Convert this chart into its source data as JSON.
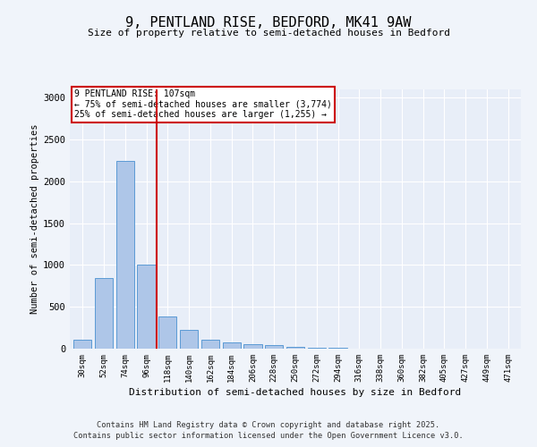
{
  "title_line1": "9, PENTLAND RISE, BEDFORD, MK41 9AW",
  "title_line2": "Size of property relative to semi-detached houses in Bedford",
  "xlabel": "Distribution of semi-detached houses by size in Bedford",
  "ylabel": "Number of semi-detached properties",
  "categories": [
    "30sqm",
    "52sqm",
    "74sqm",
    "96sqm",
    "118sqm",
    "140sqm",
    "162sqm",
    "184sqm",
    "206sqm",
    "228sqm",
    "250sqm",
    "272sqm",
    "294sqm",
    "316sqm",
    "338sqm",
    "360sqm",
    "382sqm",
    "405sqm",
    "427sqm",
    "449sqm",
    "471sqm"
  ],
  "values": [
    105,
    840,
    2250,
    1005,
    390,
    220,
    110,
    80,
    52,
    42,
    22,
    12,
    7,
    4,
    3,
    2,
    1,
    1,
    0,
    0,
    0
  ],
  "bar_color": "#aec6e8",
  "bar_edge_color": "#5b9bd5",
  "red_line_x": 3.5,
  "annotation_title": "9 PENTLAND RISE: 107sqm",
  "annotation_line2": "← 75% of semi-detached houses are smaller (3,774)",
  "annotation_line3": "25% of semi-detached houses are larger (1,255) →",
  "annotation_box_color": "#cc0000",
  "ylim": [
    0,
    3100
  ],
  "background_color": "#f0f4fa",
  "plot_bg_color": "#e8eef8",
  "grid_color": "#ffffff",
  "footnote1": "Contains HM Land Registry data © Crown copyright and database right 2025.",
  "footnote2": "Contains public sector information licensed under the Open Government Licence v3.0."
}
